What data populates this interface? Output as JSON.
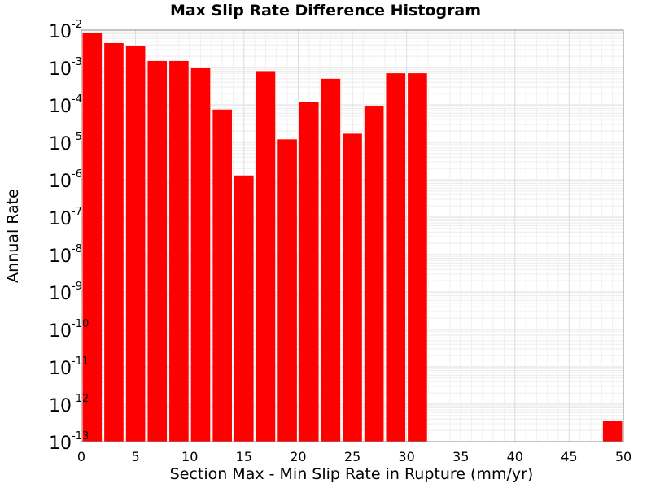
{
  "chart_data": {
    "type": "bar",
    "title": "Max Slip Rate Difference Histogram",
    "xlabel": "Section Max - Min Slip Rate in Rupture (mm/yr)",
    "ylabel": "Annual Rate",
    "yscale": "log",
    "ylim": [
      1e-13,
      0.01
    ],
    "xlim": [
      0,
      50
    ],
    "grid": true,
    "bar_color": "#ff0000",
    "x_ticks": [
      "0",
      "5",
      "10",
      "15",
      "20",
      "25",
      "30",
      "35",
      "40",
      "45",
      "50"
    ],
    "y_ticks": [
      {
        "base": "10",
        "exp": "-2"
      },
      {
        "base": "10",
        "exp": "-3"
      },
      {
        "base": "10",
        "exp": "-4"
      },
      {
        "base": "10",
        "exp": "-5"
      },
      {
        "base": "10",
        "exp": "-6"
      },
      {
        "base": "10",
        "exp": "-7"
      },
      {
        "base": "10",
        "exp": "-8"
      },
      {
        "base": "10",
        "exp": "-9"
      },
      {
        "base": "10",
        "exp": "-10"
      },
      {
        "base": "10",
        "exp": "-11"
      },
      {
        "base": "10",
        "exp": "-12"
      },
      {
        "base": "10",
        "exp": "-13"
      }
    ],
    "bin_width": 2,
    "bins": [
      {
        "x": 1,
        "y": 0.0085
      },
      {
        "x": 3,
        "y": 0.0045
      },
      {
        "x": 5,
        "y": 0.0037
      },
      {
        "x": 7,
        "y": 0.0015
      },
      {
        "x": 9,
        "y": 0.0015
      },
      {
        "x": 11,
        "y": 0.001
      },
      {
        "x": 13,
        "y": 7.5e-05
      },
      {
        "x": 15,
        "y": 1.3e-06
      },
      {
        "x": 17,
        "y": 0.0008
      },
      {
        "x": 19,
        "y": 1.2e-05
      },
      {
        "x": 21,
        "y": 0.00012
      },
      {
        "x": 23,
        "y": 0.0005
      },
      {
        "x": 25,
        "y": 1.7e-05
      },
      {
        "x": 27,
        "y": 9.5e-05
      },
      {
        "x": 29,
        "y": 0.0007
      },
      {
        "x": 31,
        "y": 0.0007
      },
      {
        "x": 49,
        "y": 3.5e-13
      }
    ]
  }
}
